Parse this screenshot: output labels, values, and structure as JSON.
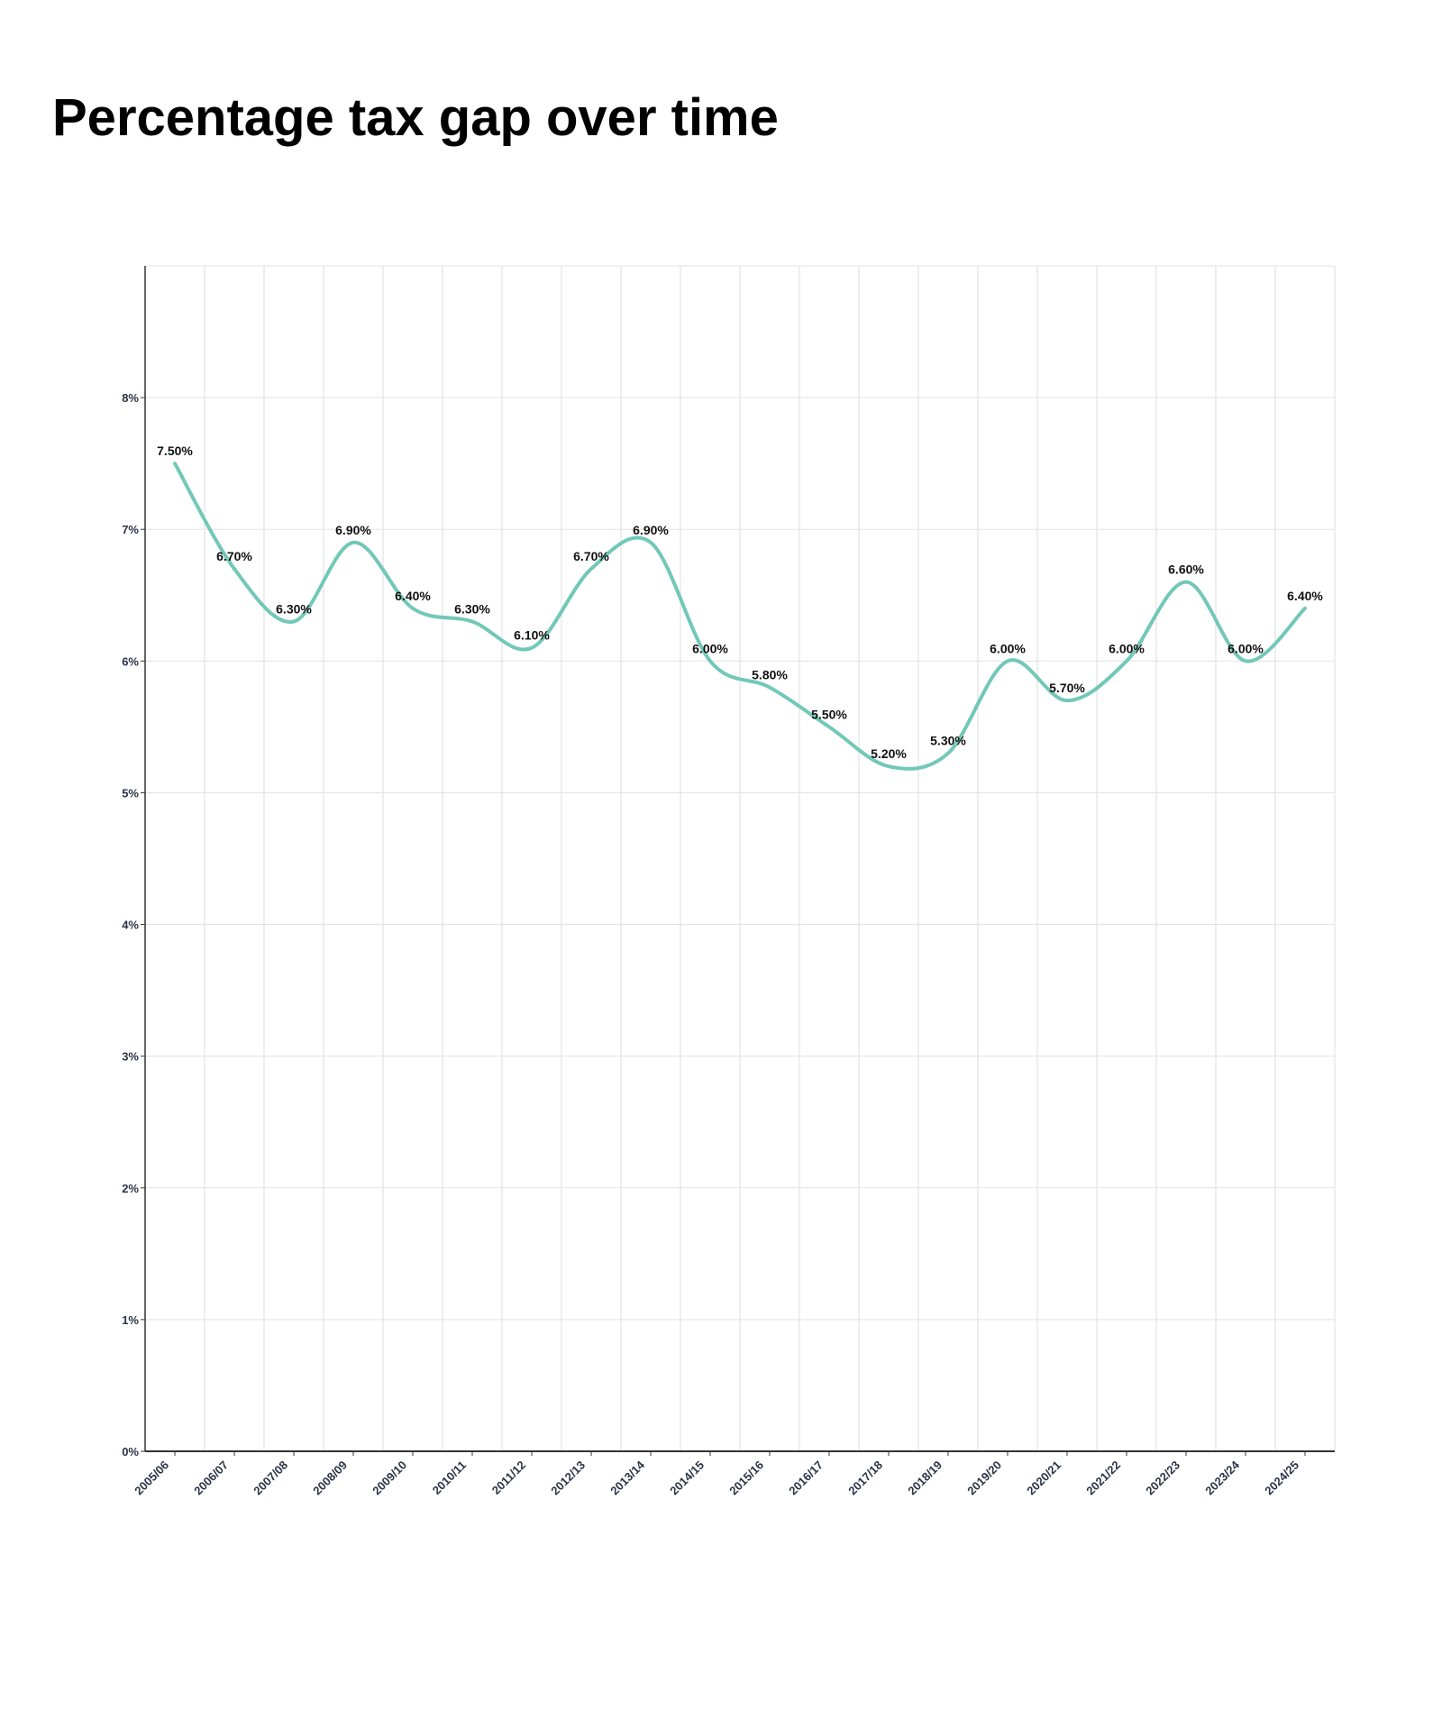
{
  "chart_data": {
    "type": "line",
    "title": "Percentage tax gap over time",
    "categories": [
      "2005/06",
      "2006/07",
      "2007/08",
      "2008/09",
      "2009/10",
      "2010/11",
      "2011/12",
      "2012/13",
      "2013/14",
      "2014/15",
      "2015/16",
      "2016/17",
      "2017/18",
      "2018/19",
      "2019/20",
      "2020/21",
      "2021/22",
      "2022/23",
      "2023/24",
      "2024/25"
    ],
    "series": [
      {
        "color": "#72c8b8",
        "values": [
          7.5,
          6.7,
          6.3,
          6.9,
          6.4,
          6.3,
          6.1,
          6.7,
          6.9,
          6.0,
          5.8,
          5.5,
          5.2,
          5.3,
          6.0,
          5.7,
          6.0,
          6.6,
          6.0,
          6.4
        ],
        "value_labels": [
          "7.50%",
          "6.70%",
          "6.30%",
          "6.90%",
          "6.40%",
          "6.30%",
          "6.10%",
          "6.70%",
          "6.90%",
          "6.00%",
          "5.80%",
          "5.50%",
          "5.20%",
          "5.30%",
          "6.00%",
          "5.70%",
          "6.00%",
          "6.60%",
          "6.00%",
          "6.40%"
        ]
      }
    ],
    "ylim": [
      0,
      9
    ],
    "yticks": [
      {
        "value": 0,
        "label": "0%"
      },
      {
        "value": 1,
        "label": "1%"
      },
      {
        "value": 2,
        "label": "2%"
      },
      {
        "value": 3,
        "label": "3%"
      },
      {
        "value": 4,
        "label": "4%"
      },
      {
        "value": 5,
        "label": "5%"
      },
      {
        "value": 6,
        "label": "6%"
      },
      {
        "value": 7,
        "label": "7%"
      },
      {
        "value": 8,
        "label": "8%"
      }
    ],
    "grid": true
  }
}
